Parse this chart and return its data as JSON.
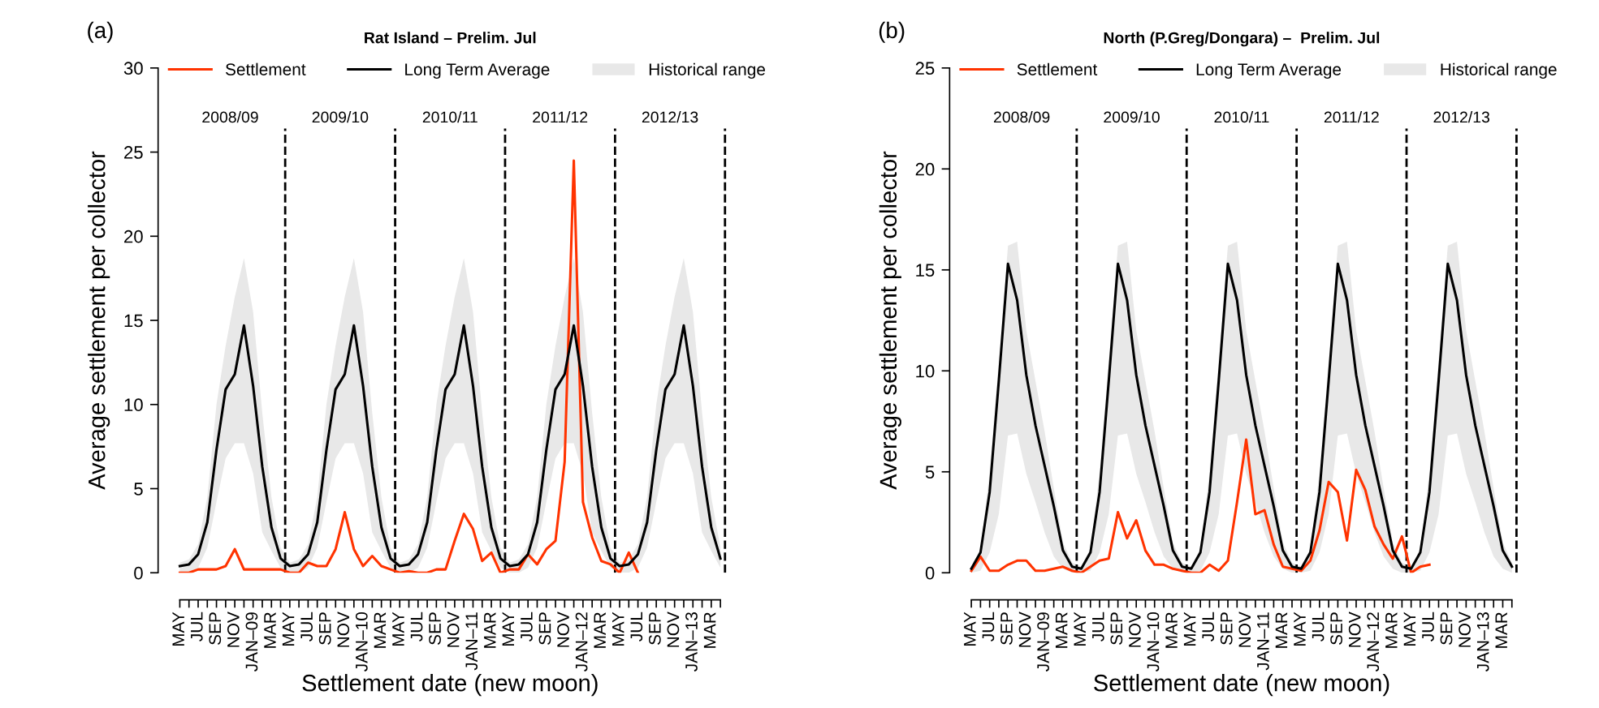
{
  "chart_data": [
    {
      "type": "line",
      "title": "Rat Island – Prelim. Jul",
      "xlabel": "Settlement date (new moon)",
      "ylabel": "Average settlement per collector",
      "annotations": [
        "(a)",
        "2008/09",
        "2009/10",
        "2010/11",
        "2011/12",
        "2012/13"
      ],
      "categories": [
        "MAY",
        null,
        "JUL",
        null,
        "SEP",
        null,
        "NOV",
        null,
        "JAN–09",
        null,
        "MAR",
        null,
        "MAY",
        null,
        "JUL",
        null,
        "SEP",
        null,
        "NOV",
        null,
        "JAN–10",
        null,
        "MAR",
        null,
        "MAY",
        null,
        "JUL",
        null,
        "SEP",
        null,
        "NOV",
        null,
        "JAN–11",
        null,
        "MAR",
        null,
        "MAY",
        null,
        "JUL",
        null,
        "SEP",
        null,
        "NOV",
        null,
        "JAN–12",
        null,
        "MAR",
        null,
        "MAY",
        null,
        "JUL",
        null,
        "SEP",
        null,
        "NOV",
        null,
        "JAN–13",
        null,
        "MAR",
        null
      ],
      "series": [
        {
          "name": "Settlement",
          "color": "#ff3300",
          "values": [
            0,
            0,
            0.2,
            0.2,
            0.2,
            0.4,
            1.4,
            0.2,
            0.2,
            0.2,
            0.2,
            0.2,
            0,
            0,
            0.6,
            0.4,
            0.4,
            1.4,
            3.6,
            1.4,
            0.4,
            1.0,
            0.4,
            0.2,
            0,
            0.1,
            0,
            0,
            0.2,
            0.2,
            1.9,
            3.5,
            2.6,
            0.7,
            1.2,
            0,
            0.2,
            0.2,
            1.1,
            0.5,
            1.4,
            1.9,
            6.6,
            24.5,
            4.2,
            2.1,
            0.7,
            0.5,
            0,
            1.2,
            0,
            null,
            null,
            null,
            null,
            null,
            null,
            null,
            null,
            null
          ]
        },
        {
          "name": "Long Term Average",
          "color": "#000000",
          "values": [
            0.4,
            0.5,
            1.1,
            3.0,
            7.3,
            10.9,
            11.8,
            14.7,
            11.1,
            6.3,
            2.7,
            0.85,
            0.4,
            0.5,
            1.1,
            3.0,
            7.3,
            10.9,
            11.8,
            14.7,
            11.1,
            6.3,
            2.7,
            0.85,
            0.4,
            0.5,
            1.1,
            3.0,
            7.3,
            10.9,
            11.8,
            14.7,
            11.1,
            6.3,
            2.7,
            0.85,
            0.4,
            0.5,
            1.1,
            3.0,
            7.3,
            10.9,
            11.8,
            14.7,
            11.1,
            6.3,
            2.7,
            0.85,
            0.4,
            0.5,
            1.1,
            3.0,
            7.3,
            10.9,
            11.8,
            14.7,
            11.1,
            6.3,
            2.7,
            0.85
          ],
          "upper": [
            0.6,
            0.8,
            1.7,
            4.5,
            10.0,
            13.5,
            16.4,
            18.7,
            15.5,
            9.5,
            4.5,
            1.5,
            0.6,
            0.8,
            1.7,
            4.5,
            10.0,
            13.5,
            16.4,
            18.7,
            15.5,
            9.5,
            4.5,
            1.5,
            0.6,
            0.8,
            1.7,
            4.5,
            10.0,
            13.5,
            16.4,
            18.7,
            15.5,
            9.5,
            4.5,
            1.5,
            0.6,
            0.8,
            1.7,
            4.5,
            10.0,
            13.5,
            16.4,
            18.7,
            15.5,
            9.5,
            4.5,
            1.5,
            0.6,
            0.8,
            1.7,
            4.5,
            10.0,
            13.5,
            16.4,
            18.7,
            15.5,
            9.5,
            4.5,
            1.5
          ],
          "lower": [
            0,
            0,
            0.3,
            1.5,
            4.2,
            6.8,
            7.7,
            7.7,
            5.9,
            2.4,
            1.3,
            0.3,
            0,
            0,
            0.3,
            1.5,
            4.2,
            6.8,
            7.7,
            7.7,
            5.9,
            2.4,
            1.3,
            0.3,
            0,
            0,
            0.3,
            1.5,
            4.2,
            6.8,
            7.7,
            7.7,
            5.9,
            2.4,
            1.3,
            0.3,
            0,
            0,
            0.3,
            1.5,
            4.2,
            6.8,
            7.7,
            7.7,
            5.9,
            2.4,
            1.3,
            0.3,
            0,
            0,
            0.3,
            1.5,
            4.2,
            6.8,
            7.7,
            7.7,
            5.9,
            2.4,
            1.3,
            0.3
          ]
        },
        {
          "name": "Historical range",
          "type": "area",
          "color": "#e8e8e8",
          "values": [
            null,
            null,
            null,
            null,
            null,
            null,
            null,
            null,
            null,
            null,
            null,
            null,
            null,
            null,
            null,
            null,
            null,
            null,
            null,
            null,
            null,
            null,
            null,
            null,
            null,
            null,
            null,
            null,
            null,
            null,
            null,
            null,
            null,
            null,
            null,
            null,
            null,
            null,
            null,
            null,
            null,
            null,
            null,
            null,
            null,
            null,
            null,
            null,
            null,
            null,
            null,
            null,
            null,
            null,
            null,
            null,
            null,
            null,
            null,
            null
          ]
        }
      ],
      "ylim": [
        0,
        30
      ],
      "yticks": [
        0,
        5,
        10,
        15,
        20,
        25,
        30
      ],
      "legend": "top",
      "line_style": "solid"
    },
    {
      "type": "line",
      "title": "North (P.Greg/Dongara) –  Prelim. Jul",
      "xlabel": "Settlement date (new moon)",
      "ylabel": "Average settlement per collector",
      "annotations": [
        "(b)",
        "2008/09",
        "2009/10",
        "2010/11",
        "2011/12",
        "2012/13"
      ],
      "categories": [
        "MAY",
        null,
        "JUL",
        null,
        "SEP",
        null,
        "NOV",
        null,
        "JAN–09",
        null,
        "MAR",
        null,
        "MAY",
        null,
        "JUL",
        null,
        "SEP",
        null,
        "NOV",
        null,
        "JAN–10",
        null,
        "MAR",
        null,
        "MAY",
        null,
        "JUL",
        null,
        "SEP",
        null,
        "NOV",
        null,
        "JAN–11",
        null,
        "MAR",
        null,
        "MAY",
        null,
        "JUL",
        null,
        "SEP",
        null,
        "NOV",
        null,
        "JAN–12",
        null,
        "MAR",
        null,
        "MAY",
        null,
        "JUL",
        null,
        "SEP",
        null,
        "NOV",
        null,
        "JAN–13",
        null,
        "MAR",
        null
      ],
      "series": [
        {
          "name": "Settlement",
          "color": "#ff3300",
          "values": [
            0.1,
            0.8,
            0.1,
            0.1,
            0.4,
            0.6,
            0.6,
            0.1,
            0.1,
            0.2,
            0.3,
            0.1,
            0,
            0.3,
            0.6,
            0.7,
            3.0,
            1.7,
            2.6,
            1.1,
            0.4,
            0.4,
            0.2,
            0.1,
            0,
            0,
            0.4,
            0.1,
            0.6,
            3.5,
            6.6,
            2.9,
            3.1,
            1.4,
            0.3,
            0.2,
            0.1,
            0.6,
            2.1,
            4.5,
            4.0,
            1.6,
            5.1,
            4.1,
            2.3,
            1.4,
            0.7,
            1.8,
            0,
            0.3,
            0.4,
            null,
            null,
            null,
            null,
            null,
            null,
            null,
            null,
            null
          ]
        },
        {
          "name": "Long Term Average",
          "color": "#000000",
          "values": [
            0.2,
            1.0,
            4.0,
            9.5,
            15.3,
            13.5,
            9.8,
            7.3,
            5.3,
            3.3,
            1.1,
            0.3,
            0.2,
            1.0,
            4.0,
            9.5,
            15.3,
            13.5,
            9.8,
            7.3,
            5.3,
            3.3,
            1.1,
            0.3,
            0.2,
            1.0,
            4.0,
            9.5,
            15.3,
            13.5,
            9.8,
            7.3,
            5.3,
            3.3,
            1.1,
            0.3,
            0.2,
            1.0,
            4.0,
            9.5,
            15.3,
            13.5,
            9.8,
            7.3,
            5.3,
            3.3,
            1.1,
            0.3,
            0.2,
            1.0,
            4.0,
            9.5,
            15.3,
            13.5,
            9.8,
            7.3,
            5.3,
            3.3,
            1.1,
            0.3
          ],
          "upper": [
            0.3,
            1.2,
            5.0,
            10.5,
            16.2,
            16.4,
            12.0,
            9.5,
            7.0,
            4.2,
            1.5,
            0.5,
            0.3,
            1.2,
            5.0,
            10.5,
            16.2,
            16.4,
            12.0,
            9.5,
            7.0,
            4.2,
            1.5,
            0.5,
            0.3,
            1.2,
            5.0,
            10.5,
            16.2,
            16.4,
            12.0,
            9.5,
            7.0,
            4.2,
            1.5,
            0.5,
            0.3,
            1.2,
            5.0,
            10.5,
            16.2,
            16.4,
            12.0,
            9.5,
            7.0,
            4.2,
            1.5,
            0.5,
            0.3,
            1.2,
            5.0,
            10.5,
            16.2,
            16.4,
            12.0,
            9.5,
            7.0,
            4.2,
            1.5,
            0.5
          ],
          "lower": [
            0,
            0.1,
            1.0,
            2.9,
            6.8,
            6.9,
            4.9,
            3.5,
            2.0,
            0.8,
            0.2,
            0,
            0,
            0.1,
            1.0,
            2.9,
            6.8,
            6.9,
            4.9,
            3.5,
            2.0,
            0.8,
            0.2,
            0,
            0,
            0.1,
            1.0,
            2.9,
            6.8,
            6.9,
            4.9,
            3.5,
            2.0,
            0.8,
            0.2,
            0,
            0,
            0.1,
            1.0,
            2.9,
            6.8,
            6.9,
            4.9,
            3.5,
            2.0,
            0.8,
            0.2,
            0,
            0,
            0.1,
            1.0,
            2.9,
            6.8,
            6.9,
            4.9,
            3.5,
            2.0,
            0.8,
            0.2,
            0
          ]
        },
        {
          "name": "Historical range",
          "type": "area",
          "color": "#e8e8e8",
          "values": [
            null,
            null,
            null,
            null,
            null,
            null,
            null,
            null,
            null,
            null,
            null,
            null,
            null,
            null,
            null,
            null,
            null,
            null,
            null,
            null,
            null,
            null,
            null,
            null,
            null,
            null,
            null,
            null,
            null,
            null,
            null,
            null,
            null,
            null,
            null,
            null,
            null,
            null,
            null,
            null,
            null,
            null,
            null,
            null,
            null,
            null,
            null,
            null,
            null,
            null,
            null,
            null,
            null,
            null,
            null,
            null,
            null,
            null,
            null,
            null
          ]
        }
      ],
      "ylim": [
        0,
        25
      ],
      "yticks": [
        0,
        5,
        10,
        15,
        20,
        25
      ],
      "legend": "top",
      "line_style": "solid"
    }
  ]
}
